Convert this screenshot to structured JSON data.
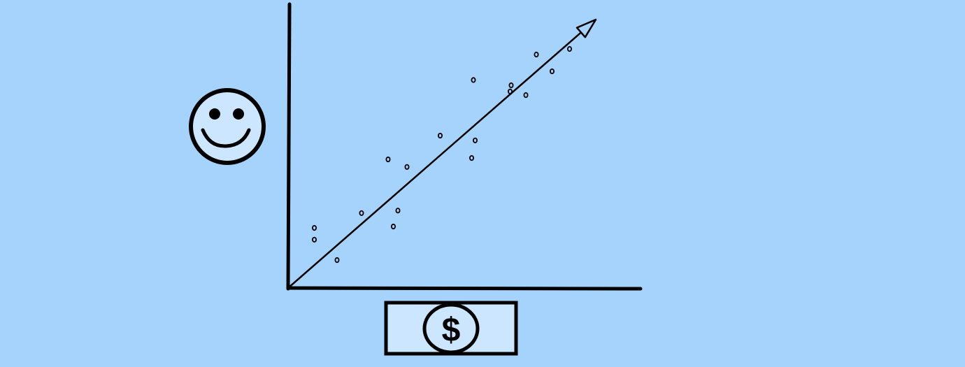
{
  "chart_data": {
    "type": "scatter",
    "title": "",
    "xlabel": "",
    "ylabel": "",
    "x_axis_icon": "dollar-bill-icon",
    "y_axis_icon": "smiley-face-icon",
    "xlim": [
      0,
      100
    ],
    "ylim": [
      0,
      100
    ],
    "grid": false,
    "series": [
      {
        "points": [
          {
            "x": 7.5,
            "y": 21.5
          },
          {
            "x": 7.5,
            "y": 17.3
          },
          {
            "x": 14,
            "y": 10.0
          },
          {
            "x": 21,
            "y": 26.8
          },
          {
            "x": 28.6,
            "y": 46.0
          },
          {
            "x": 30.1,
            "y": 22.0
          },
          {
            "x": 31.4,
            "y": 27.7
          },
          {
            "x": 34,
            "y": 43.3
          },
          {
            "x": 43.5,
            "y": 54.5
          },
          {
            "x": 52.5,
            "y": 46.5
          },
          {
            "x": 53,
            "y": 74.4
          },
          {
            "x": 53.5,
            "y": 52.8
          },
          {
            "x": 63.5,
            "y": 70.3
          },
          {
            "x": 63.8,
            "y": 72.5
          },
          {
            "x": 68,
            "y": 69.0
          },
          {
            "x": 71,
            "y": 83.5
          },
          {
            "x": 75.5,
            "y": 77.5
          },
          {
            "x": 80.5,
            "y": 85.5
          }
        ]
      }
    ],
    "trend_line": {
      "x": [
        0,
        88
      ],
      "y": [
        0,
        96
      ]
    }
  },
  "colors": {
    "background": "#a6d3fc",
    "ink": "#000000",
    "icon_fill": "#cce6ff"
  }
}
